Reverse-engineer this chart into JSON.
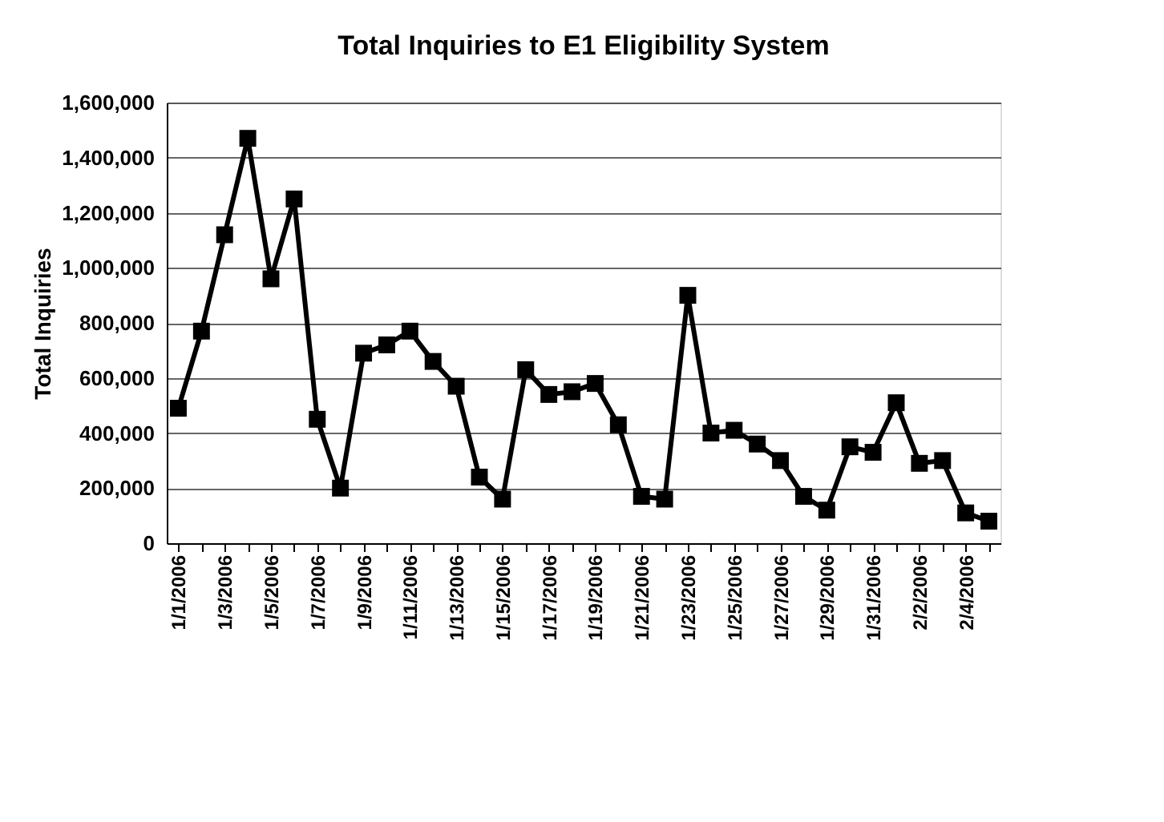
{
  "chart_data": {
    "type": "line",
    "title": "Total Inquiries to E1 Eligibility System",
    "ylabel": "Total Inquiries",
    "categories": [
      "1/1/2006",
      null,
      "1/3/2006",
      null,
      "1/5/2006",
      null,
      "1/7/2006",
      null,
      "1/9/2006",
      null,
      "1/11/2006",
      null,
      "1/13/2006",
      null,
      "1/15/2006",
      null,
      "1/17/2006",
      null,
      "1/19/2006",
      null,
      "1/21/2006",
      null,
      "1/23/2006",
      null,
      "1/25/2006",
      null,
      "1/27/2006",
      null,
      "1/29/2006",
      null,
      "1/31/2006",
      null,
      "2/2/2006",
      null,
      "2/4/2006",
      null
    ],
    "series": [
      {
        "color": "#000000",
        "values": [
          490000,
          770000,
          1120000,
          1470000,
          960000,
          1250000,
          450000,
          200000,
          690000,
          720000,
          770000,
          660000,
          570000,
          240000,
          160000,
          630000,
          540000,
          550000,
          580000,
          430000,
          170000,
          160000,
          900000,
          400000,
          410000,
          360000,
          300000,
          170000,
          120000,
          350000,
          330000,
          510000,
          290000,
          300000,
          110000,
          80000
        ]
      }
    ],
    "ylim": [
      0,
      1600000
    ],
    "yticks": [
      0,
      {
        "value": 200000,
        "label": "200,000"
      },
      {
        "value": 400000,
        "label": "400,000"
      },
      {
        "value": 600000,
        "label": "600,000"
      },
      {
        "value": 800000,
        "label": "800,000"
      },
      {
        "value": 1000000,
        "label": "1,000,000"
      },
      {
        "value": 1200000,
        "label": "1,200,000"
      },
      {
        "value": 1400000,
        "label": "1,400,000"
      },
      {
        "value": 1600000,
        "label": "1,600,000"
      }
    ],
    "grid": "y",
    "legend": false,
    "marker": "square",
    "line_style": "solid"
  }
}
